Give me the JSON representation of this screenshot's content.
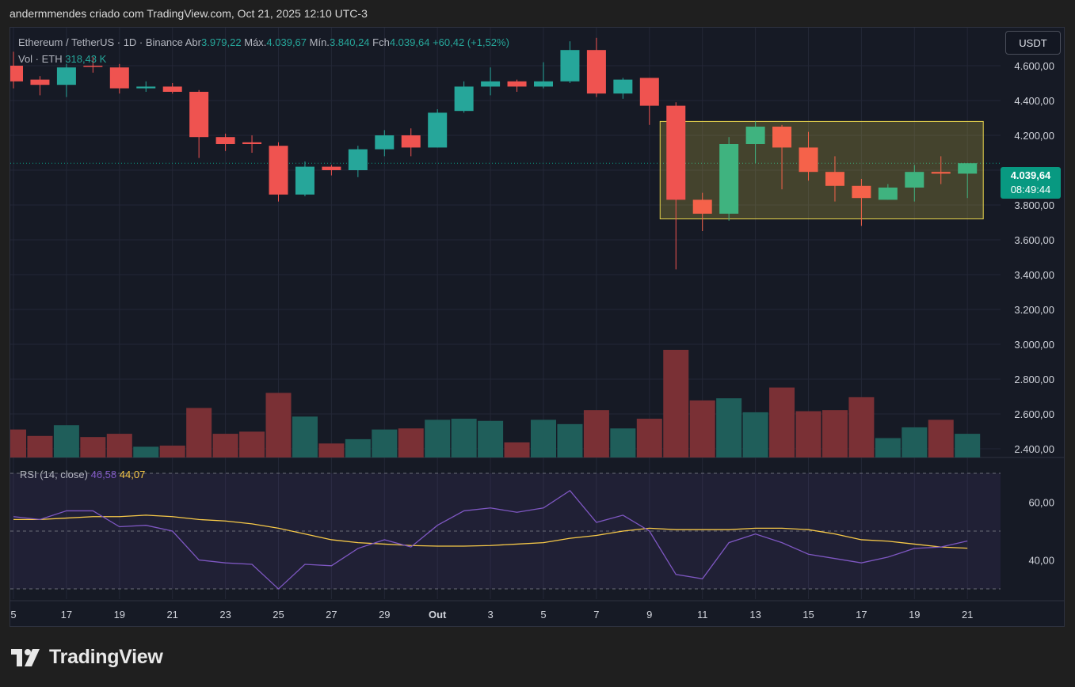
{
  "caption": "andermmendes criado com TradingView.com, Oct 21, 2025 12:10 UTC-3",
  "legend": {
    "pair": "Ethereum / TetherUS · 1D · Binance",
    "open_label": "Abr",
    "open_value": "3.979,22",
    "high_label": "Máx.",
    "high_value": "4.039,67",
    "low_label": "Mín.",
    "low_value": "3.840,24",
    "close_label": "Fch",
    "close_value": "4.039,64",
    "change": "+60,42 (+1,52%)",
    "vol_label": "Vol · ETH",
    "vol_value": "318,43 K"
  },
  "currency_button": "USDT",
  "price_tag": {
    "price": "4.039,64",
    "countdown": "08:49:44"
  },
  "rsi_legend": {
    "label": "RSI (14, close)",
    "rsi_value": "46,58",
    "ma_value": "44,07"
  },
  "logo_text": "TradingView",
  "colors": {
    "up": "#26a69a",
    "down": "#ef5350",
    "up_highlight": "#3fb37f",
    "down_highlight": "#f5624a",
    "rsi_line": "#7e57c2",
    "rsi_ma": "#f7c948",
    "box_border": "#e8d44d"
  },
  "chart_data": {
    "type": "candlestick",
    "price_axis": {
      "range": [
        2350,
        4750
      ],
      "ticks": [
        "4.600,00",
        "4.400,00",
        "4.200,00",
        "4.000,00",
        "3.800,00",
        "3.600,00",
        "3.400,00",
        "3.200,00",
        "3.000,00",
        "2.800,00",
        "2.600,00",
        "2.400,00"
      ],
      "tick_values": [
        4600,
        4400,
        4200,
        4000,
        3800,
        3600,
        3400,
        3200,
        3000,
        2800,
        2600,
        2400
      ]
    },
    "x_axis_labels": [
      {
        "label": "5",
        "index": 0
      },
      {
        "label": "17",
        "index": 2
      },
      {
        "label": "19",
        "index": 4
      },
      {
        "label": "21",
        "index": 6
      },
      {
        "label": "23",
        "index": 8
      },
      {
        "label": "25",
        "index": 10
      },
      {
        "label": "27",
        "index": 12
      },
      {
        "label": "29",
        "index": 14
      },
      {
        "label": "Out",
        "index": 16
      },
      {
        "label": "3",
        "index": 18
      },
      {
        "label": "5",
        "index": 20
      },
      {
        "label": "7",
        "index": 22
      },
      {
        "label": "9",
        "index": 24
      },
      {
        "label": "11",
        "index": 26
      },
      {
        "label": "13",
        "index": 28
      },
      {
        "label": "15",
        "index": 30
      },
      {
        "label": "17",
        "index": 32
      },
      {
        "label": "19",
        "index": 34
      },
      {
        "label": "21",
        "index": 36
      }
    ],
    "candles": [
      {
        "o": 4600,
        "h": 4680,
        "l": 4470,
        "c": 4510
      },
      {
        "o": 4520,
        "h": 4540,
        "l": 4430,
        "c": 4490
      },
      {
        "o": 4490,
        "h": 4610,
        "l": 4420,
        "c": 4590
      },
      {
        "o": 4600,
        "h": 4650,
        "l": 4560,
        "c": 4595
      },
      {
        "o": 4590,
        "h": 4610,
        "l": 4440,
        "c": 4470
      },
      {
        "o": 4470,
        "h": 4510,
        "l": 4450,
        "c": 4480
      },
      {
        "o": 4480,
        "h": 4500,
        "l": 4440,
        "c": 4450
      },
      {
        "o": 4450,
        "h": 4460,
        "l": 4070,
        "c": 4190
      },
      {
        "o": 4190,
        "h": 4210,
        "l": 4110,
        "c": 4150
      },
      {
        "o": 4160,
        "h": 4200,
        "l": 4100,
        "c": 4150
      },
      {
        "o": 4140,
        "h": 4160,
        "l": 3820,
        "c": 3860
      },
      {
        "o": 3860,
        "h": 4050,
        "l": 3850,
        "c": 4020
      },
      {
        "o": 4020,
        "h": 4030,
        "l": 3970,
        "c": 4000
      },
      {
        "o": 4000,
        "h": 4140,
        "l": 3960,
        "c": 4120
      },
      {
        "o": 4120,
        "h": 4230,
        "l": 4080,
        "c": 4200
      },
      {
        "o": 4200,
        "h": 4240,
        "l": 4080,
        "c": 4130
      },
      {
        "o": 4130,
        "h": 4350,
        "l": 4130,
        "c": 4330
      },
      {
        "o": 4340,
        "h": 4510,
        "l": 4330,
        "c": 4480
      },
      {
        "o": 4480,
        "h": 4590,
        "l": 4430,
        "c": 4510
      },
      {
        "o": 4510,
        "h": 4520,
        "l": 4450,
        "c": 4480
      },
      {
        "o": 4480,
        "h": 4620,
        "l": 4470,
        "c": 4510
      },
      {
        "o": 4510,
        "h": 4740,
        "l": 4500,
        "c": 4690
      },
      {
        "o": 4690,
        "h": 4760,
        "l": 4420,
        "c": 4440
      },
      {
        "o": 4440,
        "h": 4530,
        "l": 4410,
        "c": 4520
      },
      {
        "o": 4530,
        "h": 4530,
        "l": 4260,
        "c": 4370
      },
      {
        "o": 4370,
        "h": 4390,
        "l": 3430,
        "c": 3830
      },
      {
        "o": 3830,
        "h": 3870,
        "l": 3650,
        "c": 3750
      },
      {
        "o": 3750,
        "h": 4190,
        "l": 3710,
        "c": 4150
      },
      {
        "o": 4150,
        "h": 4280,
        "l": 4040,
        "c": 4250
      },
      {
        "o": 4250,
        "h": 4260,
        "l": 3890,
        "c": 4130
      },
      {
        "o": 4130,
        "h": 4220,
        "l": 3940,
        "c": 3990
      },
      {
        "o": 3990,
        "h": 4080,
        "l": 3820,
        "c": 3910
      },
      {
        "o": 3910,
        "h": 3950,
        "l": 3680,
        "c": 3840
      },
      {
        "o": 3830,
        "h": 3920,
        "l": 3830,
        "c": 3900
      },
      {
        "o": 3900,
        "h": 4030,
        "l": 3820,
        "c": 3990
      },
      {
        "o": 3990,
        "h": 4080,
        "l": 3920,
        "c": 3980
      },
      {
        "o": 3980,
        "h": 4040,
        "l": 3840,
        "c": 4040
      }
    ],
    "volume": [
      0.26,
      0.2,
      0.3,
      0.19,
      0.22,
      0.1,
      0.11,
      0.46,
      0.22,
      0.24,
      0.6,
      0.38,
      0.13,
      0.17,
      0.26,
      0.27,
      0.35,
      0.36,
      0.34,
      0.14,
      0.35,
      0.31,
      0.44,
      0.27,
      0.36,
      1.0,
      0.53,
      0.55,
      0.42,
      0.65,
      0.43,
      0.44,
      0.56,
      0.18,
      0.28,
      0.35,
      0.22
    ],
    "rsi_axis": {
      "range": [
        27,
        73
      ],
      "ticks": [
        "60,00",
        "40,00"
      ],
      "tick_values": [
        60,
        40
      ],
      "bands": [
        70,
        50,
        30
      ]
    },
    "rsi": [
      55,
      54,
      57,
      57,
      51.5,
      52,
      50,
      40,
      39,
      38.5,
      30,
      38.5,
      38,
      44,
      47,
      44.5,
      52,
      57,
      58,
      56.5,
      58,
      64,
      53,
      55.5,
      50,
      35,
      33.5,
      46,
      49,
      46,
      42,
      40.5,
      39,
      41,
      44,
      44.5,
      46.58
    ],
    "rsi_ma": [
      54,
      54,
      54.5,
      55,
      55,
      55.5,
      55,
      54,
      53.5,
      52.5,
      51,
      49,
      47,
      46,
      45.5,
      45,
      44.8,
      44.8,
      45,
      45.5,
      46,
      47.5,
      48.5,
      50,
      51,
      50.5,
      50.5,
      50.5,
      51,
      51,
      50.5,
      49,
      47,
      46.5,
      45.5,
      44.5,
      44.07
    ],
    "highlight_box": {
      "from_index": 25,
      "to_index": 36,
      "top": 4280,
      "bottom": 3720
    }
  }
}
